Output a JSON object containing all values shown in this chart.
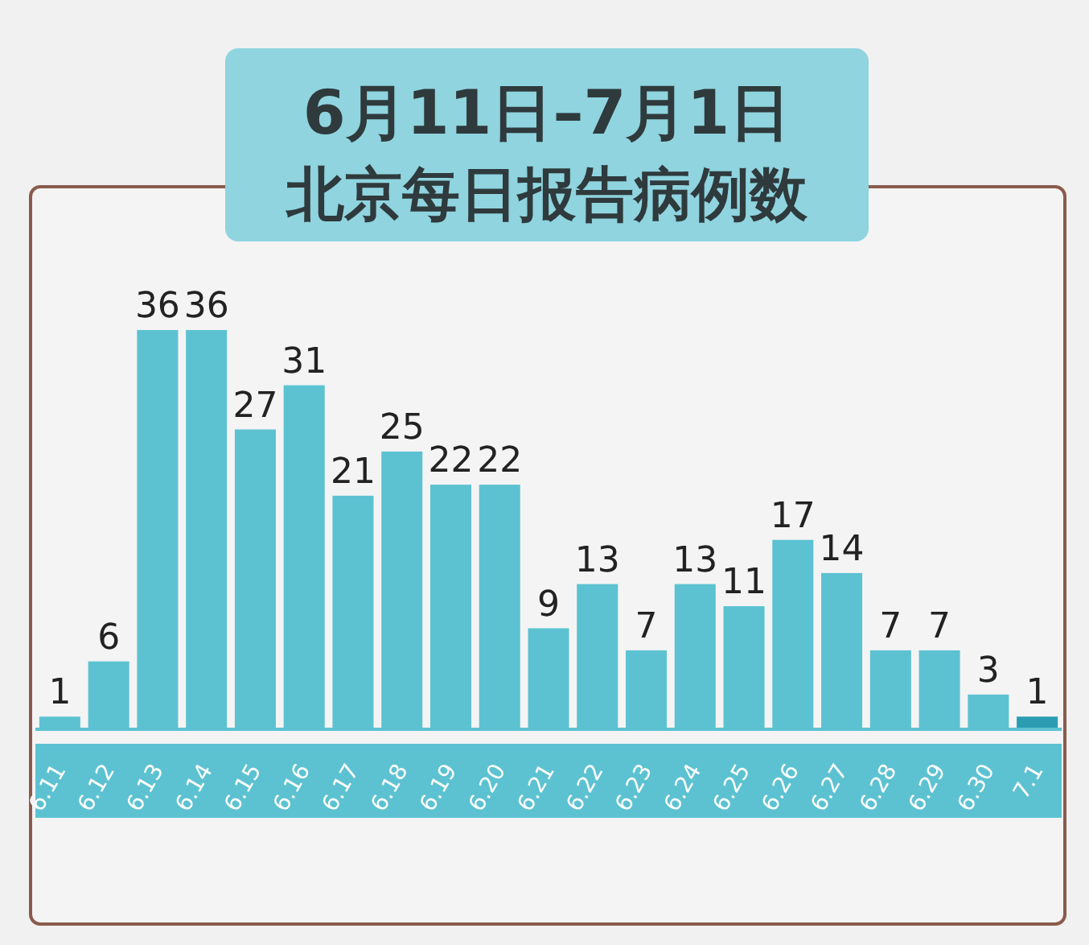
{
  "chart_data": {
    "type": "bar",
    "title": "6月11日–7月1日",
    "subtitle": "北京每日报告病例数",
    "categories": [
      "6.11",
      "6.12",
      "6.13",
      "6.14",
      "6.15",
      "6.16",
      "6.17",
      "6.18",
      "6.19",
      "6.20",
      "6.21",
      "6.22",
      "6.23",
      "6.24",
      "6.25",
      "6.26",
      "6.27",
      "6.28",
      "6.29",
      "6.30",
      "7.1"
    ],
    "values": [
      1,
      6,
      36,
      36,
      27,
      31,
      21,
      25,
      22,
      22,
      9,
      13,
      7,
      13,
      11,
      17,
      14,
      7,
      7,
      3,
      1
    ],
    "colors": [
      "#5cc2d2",
      "#5cc2d2",
      "#5cc2d2",
      "#5cc2d2",
      "#5cc2d2",
      "#5cc2d2",
      "#5cc2d2",
      "#5cc2d2",
      "#5cc2d2",
      "#5cc2d2",
      "#5cc2d2",
      "#5cc2d2",
      "#5cc2d2",
      "#5cc2d2",
      "#5cc2d2",
      "#5cc2d2",
      "#5cc2d2",
      "#5cc2d2",
      "#5cc2d2",
      "#5cc2d2",
      "#2a9db2"
    ],
    "data_labels": true
  }
}
